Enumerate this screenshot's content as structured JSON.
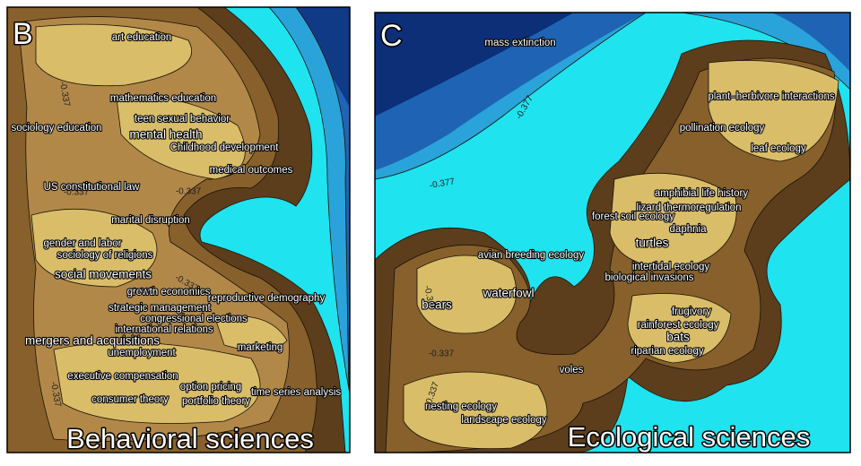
{
  "panels": [
    {
      "letter": "B",
      "title": "Behavioral sciences",
      "labels": [
        "art education",
        "mathematics education",
        "teen sexual behavior",
        "mental health",
        "Childhood development",
        "sociology education",
        "medical outcomes",
        "US constitutional law",
        "marital disruption",
        "gender and labor",
        "sociology of religions",
        "social movements",
        "growth economics",
        "reproductive demography",
        "strategic management",
        "congressional elections",
        "international relations",
        "mergers and acquisitions",
        "unemployment",
        "marketing",
        "executive compensation",
        "option pricing",
        "consumer theory",
        "portfolio theory",
        "time series analysis"
      ],
      "contour_labels": [
        "-0.337",
        "-0.337",
        "-0.337",
        "-0.337",
        "-0.337",
        "-0.337"
      ]
    },
    {
      "letter": "C",
      "title": "Ecological sciences",
      "labels": [
        "mass extinction",
        "plant–herbivore interactions",
        "pollination ecology",
        "leaf ecology",
        "amphibial life history",
        "lizard thermoregulation",
        "forest soil ecology",
        "daphnia",
        "turtles",
        "avian breeding ecology",
        "intertidal ecology",
        "biological invasions",
        "waterfowl",
        "bears",
        "frugivory",
        "rainforest ecology",
        "bats",
        "riparian ecology",
        "voles",
        "nesting ecology",
        "landscape ecology"
      ],
      "contour_labels": [
        "-0.377",
        "-0.377",
        "-0.33",
        "-0.337",
        "-0.337"
      ]
    }
  ]
}
